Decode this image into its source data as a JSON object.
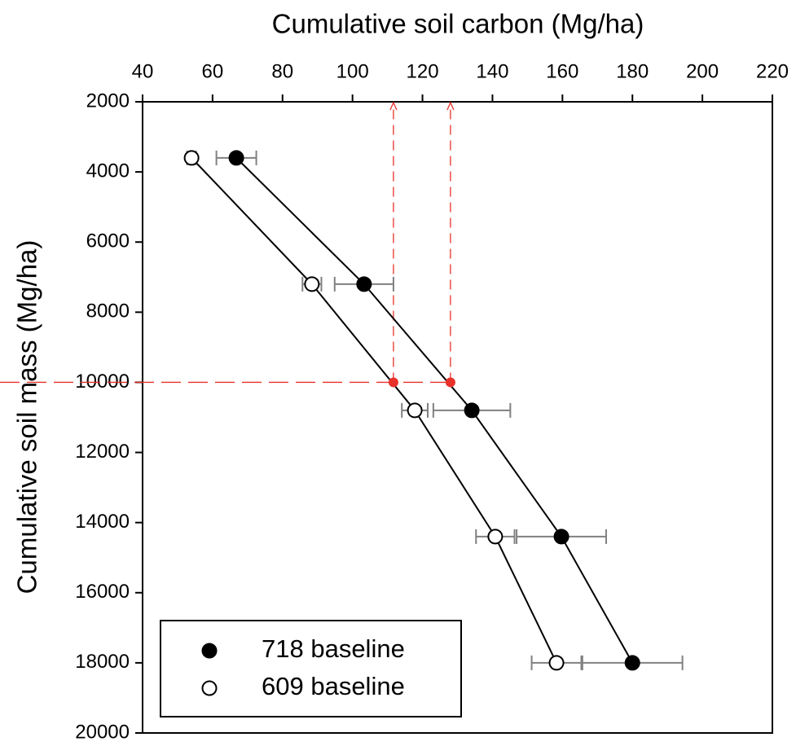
{
  "chart_data": {
    "type": "scatter",
    "title": "Cumulative soil carbon (Mg/ha)",
    "y_label": "Cumulative soil mass (Mg/ha)",
    "xlim": [
      40,
      220
    ],
    "xticks": [
      40,
      60,
      80,
      100,
      120,
      140,
      160,
      180,
      200,
      220
    ],
    "ylim": [
      2000,
      20000
    ],
    "yticks": [
      2000,
      4000,
      6000,
      8000,
      10000,
      12000,
      14000,
      16000,
      18000,
      20000
    ],
    "y_reversed": true,
    "x_axis_position": "top",
    "legend": "lower left",
    "error_color": "#808080",
    "series": [
      {
        "name": "718 baseline",
        "color": "#000000",
        "fill": "#000000",
        "x": [
          66.8,
          103.3,
          134.1,
          159.7,
          180.0
        ],
        "values": [
          3600,
          7200,
          10800,
          14400,
          18000
        ],
        "errors": [
          5.7,
          8.4,
          11,
          12.8,
          14.3
        ]
      },
      {
        "name": "609 baseline",
        "color": "#000000",
        "fill": "#ffffff",
        "x": [
          54,
          88.4,
          117.8,
          140.8,
          158.3
        ],
        "values": [
          3600,
          7200,
          10800,
          14400,
          18000
        ],
        "errors": [
          1.3,
          2.7,
          3.7,
          5.5,
          7.1
        ]
      }
    ],
    "reference_points": {
      "color": "#e8312a",
      "x": [
        111.7,
        128
      ],
      "values": [
        10000,
        10000
      ]
    }
  }
}
